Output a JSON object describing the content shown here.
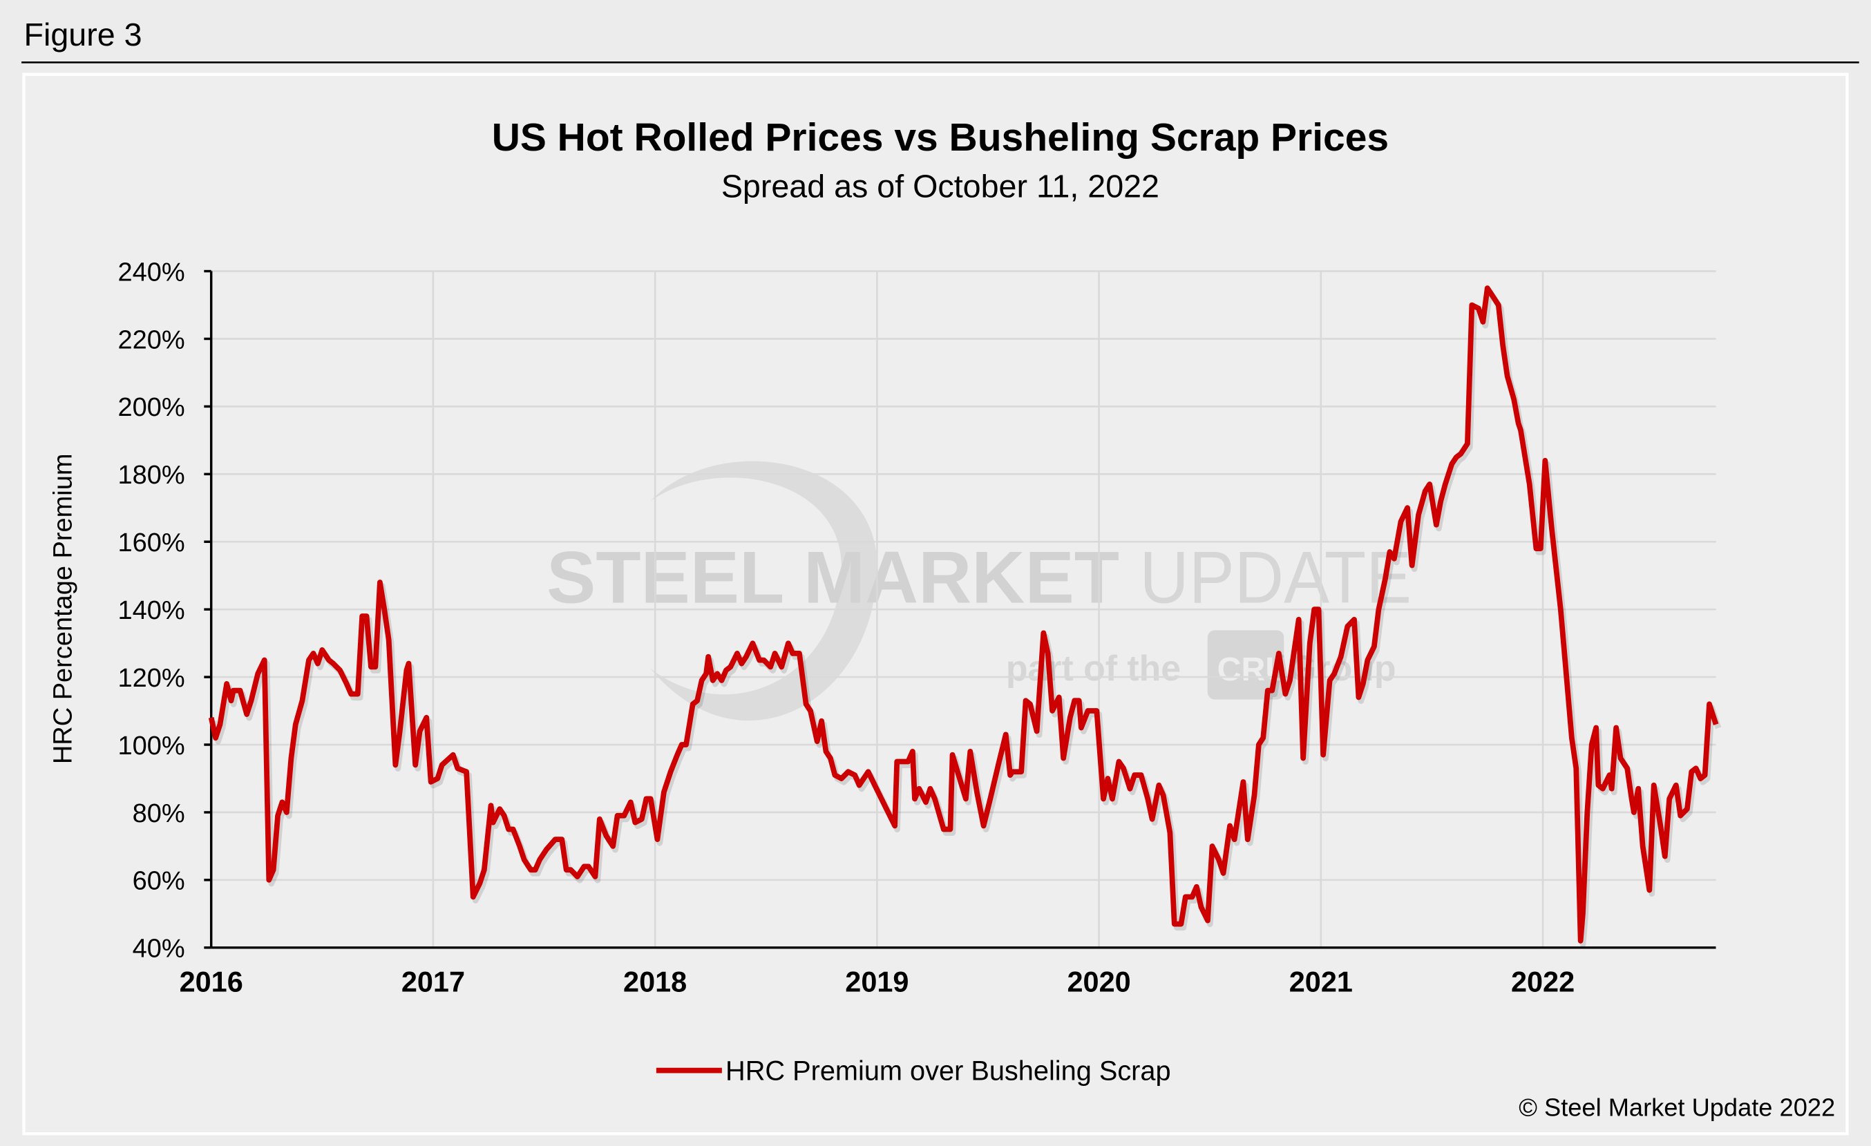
{
  "figure_label": "Figure 3",
  "copyright": "© Steel Market Update 2022",
  "watermark": {
    "brand": "STEEL MARKET UPDATE",
    "brand_bold": "STEEL MARKET",
    "brand_light": "UPDATE",
    "tagline_pre": "part of the",
    "tagline_logo": "CRU",
    "tagline_post": "Group"
  },
  "colors": {
    "series": "#cc0000",
    "background": "#ececec",
    "grid": "#d9d9d9",
    "watermark": "#d4d4d4"
  },
  "chart_data": {
    "type": "line",
    "title": "US Hot Rolled Prices vs Busheling Scrap Prices",
    "subtitle": "Spread as of October 11, 2022",
    "xlabel": "",
    "ylabel": "HRC Percentage Premium",
    "x_unit": "year",
    "xlim": [
      2016,
      2022.78
    ],
    "ylim": [
      40,
      240
    ],
    "x_ticks": [
      "2016",
      "2017",
      "2018",
      "2019",
      "2020",
      "2021",
      "2022"
    ],
    "y_ticks": [
      "40%",
      "60%",
      "80%",
      "100%",
      "120%",
      "140%",
      "160%",
      "180%",
      "200%",
      "220%",
      "240%"
    ],
    "grid": true,
    "legend_position": "bottom",
    "series": [
      {
        "name": "HRC Premium over Busheling Scrap",
        "points": [
          [
            2016.0,
            108
          ],
          [
            2016.02,
            102
          ],
          [
            2016.04,
            106
          ],
          [
            2016.07,
            118
          ],
          [
            2016.09,
            113
          ],
          [
            2016.1,
            116
          ],
          [
            2016.13,
            116
          ],
          [
            2016.16,
            109
          ],
          [
            2016.18,
            113
          ],
          [
            2016.21,
            121
          ],
          [
            2016.24,
            125
          ],
          [
            2016.26,
            60
          ],
          [
            2016.28,
            63
          ],
          [
            2016.3,
            79
          ],
          [
            2016.32,
            83
          ],
          [
            2016.34,
            80
          ],
          [
            2016.36,
            96
          ],
          [
            2016.38,
            106
          ],
          [
            2016.41,
            113
          ],
          [
            2016.44,
            125
          ],
          [
            2016.46,
            127
          ],
          [
            2016.48,
            124
          ],
          [
            2016.5,
            128
          ],
          [
            2016.53,
            125
          ],
          [
            2016.55,
            124
          ],
          [
            2016.58,
            122
          ],
          [
            2016.61,
            118
          ],
          [
            2016.63,
            115
          ],
          [
            2016.66,
            115
          ],
          [
            2016.68,
            138
          ],
          [
            2016.7,
            138
          ],
          [
            2016.72,
            123
          ],
          [
            2016.74,
            123
          ],
          [
            2016.76,
            148
          ],
          [
            2016.78,
            140
          ],
          [
            2016.8,
            131
          ],
          [
            2016.83,
            94
          ],
          [
            2016.85,
            104
          ],
          [
            2016.88,
            122
          ],
          [
            2016.89,
            124
          ],
          [
            2016.92,
            94
          ],
          [
            2016.94,
            104
          ],
          [
            2016.97,
            108
          ],
          [
            2016.99,
            89
          ],
          [
            2017.02,
            90
          ],
          [
            2017.04,
            94
          ],
          [
            2017.09,
            97
          ],
          [
            2017.11,
            93
          ],
          [
            2017.15,
            92
          ],
          [
            2017.18,
            55
          ],
          [
            2017.21,
            59
          ],
          [
            2017.23,
            63
          ],
          [
            2017.26,
            82
          ],
          [
            2017.27,
            77
          ],
          [
            2017.3,
            81
          ],
          [
            2017.32,
            79
          ],
          [
            2017.34,
            75
          ],
          [
            2017.36,
            75
          ],
          [
            2017.39,
            70
          ],
          [
            2017.41,
            66
          ],
          [
            2017.44,
            63
          ],
          [
            2017.46,
            63
          ],
          [
            2017.48,
            66
          ],
          [
            2017.51,
            69
          ],
          [
            2017.55,
            72
          ],
          [
            2017.58,
            72
          ],
          [
            2017.6,
            63
          ],
          [
            2017.62,
            63
          ],
          [
            2017.65,
            61
          ],
          [
            2017.68,
            64
          ],
          [
            2017.7,
            64
          ],
          [
            2017.73,
            61
          ],
          [
            2017.75,
            78
          ],
          [
            2017.78,
            73
          ],
          [
            2017.81,
            70
          ],
          [
            2017.83,
            79
          ],
          [
            2017.86,
            79
          ],
          [
            2017.89,
            83
          ],
          [
            2017.91,
            77
          ],
          [
            2017.94,
            78
          ],
          [
            2017.96,
            84
          ],
          [
            2017.98,
            84
          ],
          [
            2018.01,
            72
          ],
          [
            2018.04,
            86
          ],
          [
            2018.07,
            92
          ],
          [
            2018.1,
            97
          ],
          [
            2018.12,
            100
          ],
          [
            2018.14,
            100
          ],
          [
            2018.17,
            112
          ],
          [
            2018.19,
            113
          ],
          [
            2018.21,
            119
          ],
          [
            2018.23,
            121
          ],
          [
            2018.24,
            126
          ],
          [
            2018.26,
            119
          ],
          [
            2018.28,
            121
          ],
          [
            2018.3,
            119
          ],
          [
            2018.32,
            122
          ],
          [
            2018.34,
            123
          ],
          [
            2018.37,
            127
          ],
          [
            2018.39,
            124
          ],
          [
            2018.41,
            126
          ],
          [
            2018.44,
            130
          ],
          [
            2018.47,
            125
          ],
          [
            2018.49,
            125
          ],
          [
            2018.52,
            123
          ],
          [
            2018.54,
            127
          ],
          [
            2018.57,
            123
          ],
          [
            2018.6,
            130
          ],
          [
            2018.62,
            127
          ],
          [
            2018.65,
            127
          ],
          [
            2018.68,
            112
          ],
          [
            2018.7,
            110
          ],
          [
            2018.73,
            101
          ],
          [
            2018.75,
            107
          ],
          [
            2018.77,
            98
          ],
          [
            2018.79,
            96
          ],
          [
            2018.81,
            91
          ],
          [
            2018.84,
            90
          ],
          [
            2018.87,
            92
          ],
          [
            2018.9,
            91
          ],
          [
            2018.92,
            88
          ],
          [
            2018.94,
            90
          ],
          [
            2018.96,
            92
          ],
          [
            2018.99,
            88
          ],
          [
            2019.05,
            80
          ],
          [
            2019.08,
            76
          ],
          [
            2019.09,
            95
          ],
          [
            2019.14,
            95
          ],
          [
            2019.16,
            98
          ],
          [
            2019.17,
            84
          ],
          [
            2019.19,
            87
          ],
          [
            2019.22,
            83
          ],
          [
            2019.24,
            87
          ],
          [
            2019.26,
            84
          ],
          [
            2019.3,
            75
          ],
          [
            2019.33,
            75
          ],
          [
            2019.34,
            97
          ],
          [
            2019.4,
            84
          ],
          [
            2019.42,
            98
          ],
          [
            2019.45,
            86
          ],
          [
            2019.48,
            76
          ],
          [
            2019.51,
            84
          ],
          [
            2019.55,
            95
          ],
          [
            2019.58,
            103
          ],
          [
            2019.6,
            91
          ],
          [
            2019.61,
            92
          ],
          [
            2019.65,
            92
          ],
          [
            2019.67,
            113
          ],
          [
            2019.69,
            112
          ],
          [
            2019.72,
            104
          ],
          [
            2019.75,
            133
          ],
          [
            2019.77,
            127
          ],
          [
            2019.79,
            110
          ],
          [
            2019.82,
            114
          ],
          [
            2019.84,
            96
          ],
          [
            2019.87,
            108
          ],
          [
            2019.89,
            113
          ],
          [
            2019.91,
            113
          ],
          [
            2019.92,
            105
          ],
          [
            2019.95,
            110
          ],
          [
            2019.99,
            110
          ],
          [
            2020.02,
            84
          ],
          [
            2020.04,
            90
          ],
          [
            2020.06,
            84
          ],
          [
            2020.09,
            95
          ],
          [
            2020.11,
            93
          ],
          [
            2020.14,
            87
          ],
          [
            2020.16,
            91
          ],
          [
            2020.19,
            91
          ],
          [
            2020.22,
            84
          ],
          [
            2020.24,
            78
          ],
          [
            2020.27,
            88
          ],
          [
            2020.29,
            85
          ],
          [
            2020.32,
            74
          ],
          [
            2020.34,
            47
          ],
          [
            2020.37,
            47
          ],
          [
            2020.39,
            55
          ],
          [
            2020.42,
            55
          ],
          [
            2020.44,
            58
          ],
          [
            2020.46,
            52
          ],
          [
            2020.49,
            48
          ],
          [
            2020.51,
            70
          ],
          [
            2020.54,
            66
          ],
          [
            2020.56,
            62
          ],
          [
            2020.59,
            76
          ],
          [
            2020.61,
            72
          ],
          [
            2020.65,
            89
          ],
          [
            2020.67,
            72
          ],
          [
            2020.7,
            85
          ],
          [
            2020.72,
            100
          ],
          [
            2020.74,
            102
          ],
          [
            2020.76,
            116
          ],
          [
            2020.78,
            116
          ],
          [
            2020.81,
            127
          ],
          [
            2020.84,
            115
          ],
          [
            2020.86,
            119
          ],
          [
            2020.9,
            137
          ],
          [
            2020.92,
            96
          ],
          [
            2020.95,
            130
          ],
          [
            2020.97,
            140
          ],
          [
            2020.99,
            140
          ],
          [
            2021.01,
            97
          ],
          [
            2021.04,
            119
          ],
          [
            2021.06,
            121
          ],
          [
            2021.09,
            126
          ],
          [
            2021.12,
            135
          ],
          [
            2021.15,
            137
          ],
          [
            2021.17,
            114
          ],
          [
            2021.19,
            118
          ],
          [
            2021.21,
            125
          ],
          [
            2021.24,
            129
          ],
          [
            2021.26,
            140
          ],
          [
            2021.29,
            149
          ],
          [
            2021.31,
            157
          ],
          [
            2021.33,
            155
          ],
          [
            2021.36,
            166
          ],
          [
            2021.39,
            170
          ],
          [
            2021.41,
            153
          ],
          [
            2021.44,
            168
          ],
          [
            2021.47,
            175
          ],
          [
            2021.49,
            177
          ],
          [
            2021.52,
            165
          ],
          [
            2021.54,
            172
          ],
          [
            2021.56,
            177
          ],
          [
            2021.59,
            183
          ],
          [
            2021.61,
            185
          ],
          [
            2021.63,
            186
          ],
          [
            2021.66,
            189
          ],
          [
            2021.68,
            230
          ],
          [
            2021.71,
            229
          ],
          [
            2021.73,
            225
          ],
          [
            2021.75,
            235
          ],
          [
            2021.77,
            233
          ],
          [
            2021.8,
            230
          ],
          [
            2021.82,
            218
          ],
          [
            2021.84,
            209
          ],
          [
            2021.87,
            202
          ],
          [
            2021.89,
            195
          ],
          [
            2021.9,
            193
          ],
          [
            2021.94,
            177
          ],
          [
            2021.97,
            158
          ],
          [
            2021.99,
            158
          ],
          [
            2022.01,
            184
          ],
          [
            2022.04,
            164
          ],
          [
            2022.08,
            140
          ],
          [
            2022.1,
            125
          ],
          [
            2022.13,
            102
          ],
          [
            2022.15,
            93
          ],
          [
            2022.17,
            42
          ],
          [
            2022.18,
            50
          ],
          [
            2022.2,
            80
          ],
          [
            2022.22,
            100
          ],
          [
            2022.24,
            105
          ],
          [
            2022.25,
            88
          ],
          [
            2022.27,
            87
          ],
          [
            2022.3,
            91
          ],
          [
            2022.31,
            87
          ],
          [
            2022.33,
            105
          ],
          [
            2022.35,
            96
          ],
          [
            2022.38,
            93
          ],
          [
            2022.4,
            84
          ],
          [
            2022.41,
            80
          ],
          [
            2022.43,
            87
          ],
          [
            2022.45,
            70
          ],
          [
            2022.48,
            57
          ],
          [
            2022.5,
            88
          ],
          [
            2022.53,
            76
          ],
          [
            2022.55,
            67
          ],
          [
            2022.57,
            84
          ],
          [
            2022.6,
            88
          ],
          [
            2022.62,
            79
          ],
          [
            2022.65,
            81
          ],
          [
            2022.67,
            92
          ],
          [
            2022.69,
            93
          ],
          [
            2022.71,
            90
          ],
          [
            2022.73,
            91
          ],
          [
            2022.75,
            112
          ],
          [
            2022.78,
            106
          ]
        ]
      }
    ]
  }
}
